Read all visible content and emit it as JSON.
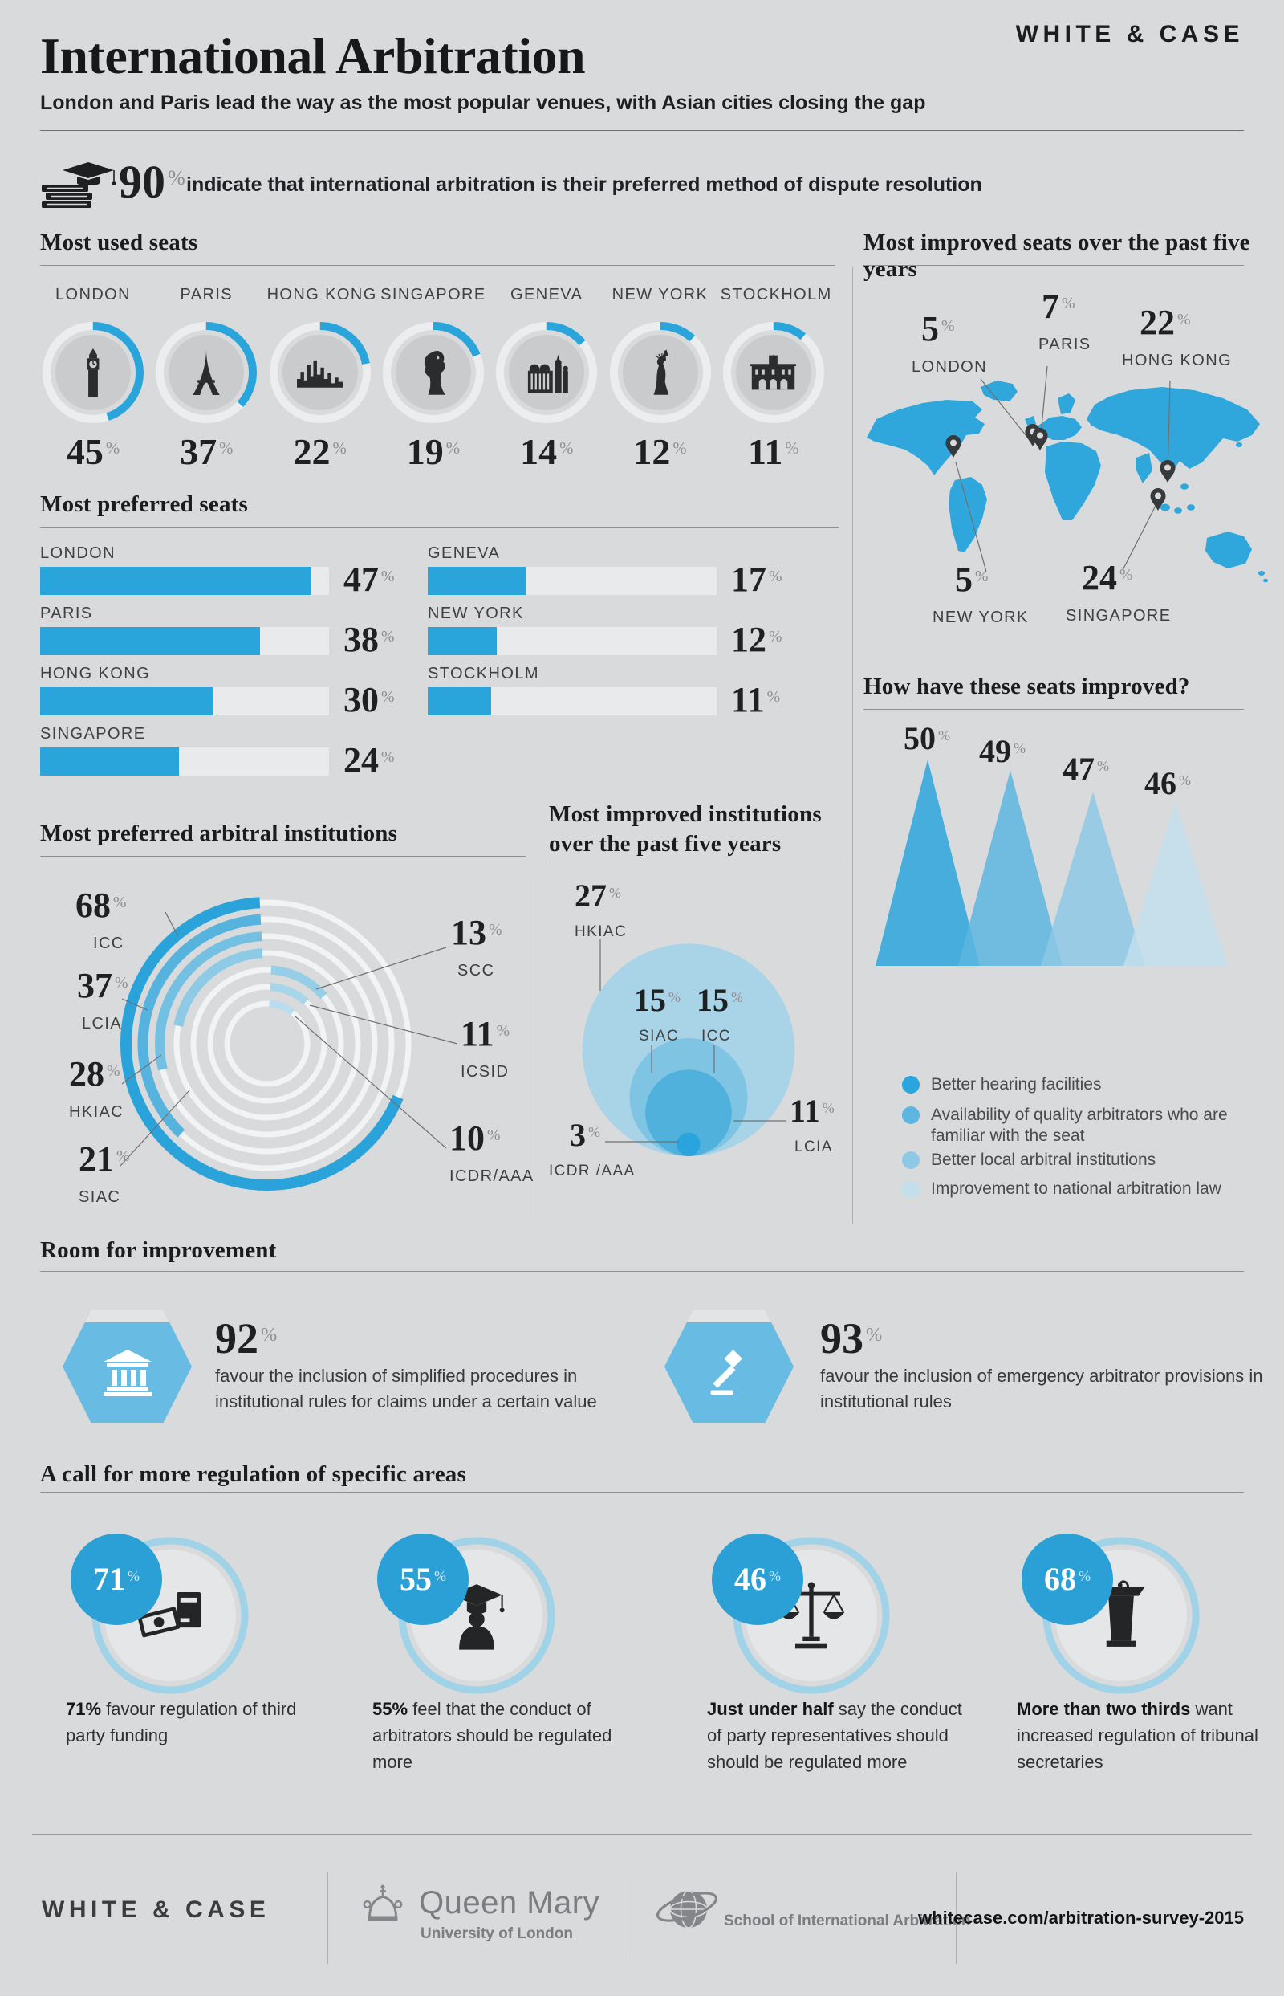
{
  "page": {
    "background": "#d9dadb",
    "accent": "#2aa5dc"
  },
  "header": {
    "title": "International Arbitration",
    "subtitle": "London and Paris lead the way as the most popular venues, with Asian cities closing the gap",
    "logo": "WHITE & CASE"
  },
  "stat90": {
    "value": "90",
    "pct": "%",
    "text": "indicate that international arbitration is their preferred method of dispute resolution",
    "icon": "books-grad-cap-icon"
  },
  "most_used_seats": {
    "title": "Most used seats",
    "items": [
      {
        "city": "LONDON",
        "value": 45,
        "icon": "big-ben-icon"
      },
      {
        "city": "PARIS",
        "value": 37,
        "icon": "eiffel-tower-icon"
      },
      {
        "city": "HONG KONG",
        "value": 22,
        "icon": "skyline-icon"
      },
      {
        "city": "SINGAPORE",
        "value": 19,
        "icon": "merlion-icon"
      },
      {
        "city": "GENEVA",
        "value": 14,
        "icon": "geneva-building-icon"
      },
      {
        "city": "NEW YORK",
        "value": 12,
        "icon": "statue-of-liberty-icon"
      },
      {
        "city": "STOCKHOLM",
        "value": 11,
        "icon": "palace-icon"
      }
    ]
  },
  "most_improved_seats": {
    "title": "Most improved seats over the past five years",
    "items": [
      {
        "city": "LONDON",
        "value": 5
      },
      {
        "city": "PARIS",
        "value": 7
      },
      {
        "city": "HONG KONG",
        "value": 22
      },
      {
        "city": "NEW YORK",
        "value": 5
      },
      {
        "city": "SINGAPORE",
        "value": 24
      }
    ]
  },
  "most_preferred_seats": {
    "title": "Most preferred seats",
    "items": [
      {
        "city": "LONDON",
        "value": 47
      },
      {
        "city": "PARIS",
        "value": 38
      },
      {
        "city": "HONG KONG",
        "value": 30
      },
      {
        "city": "SINGAPORE",
        "value": 24
      },
      {
        "city": "GENEVA",
        "value": 17
      },
      {
        "city": "NEW YORK",
        "value": 12
      },
      {
        "city": "STOCKHOLM",
        "value": 11
      }
    ]
  },
  "preferred_institutions": {
    "title": "Most preferred arbitral institutions",
    "items": [
      {
        "name": "ICC",
        "value": 68
      },
      {
        "name": "LCIA",
        "value": 37
      },
      {
        "name": "HKIAC",
        "value": 28
      },
      {
        "name": "SIAC",
        "value": 21
      },
      {
        "name": "SCC",
        "value": 13
      },
      {
        "name": "ICSID",
        "value": 11
      },
      {
        "name": "ICDR/AAA",
        "value": 10
      }
    ]
  },
  "improved_institutions": {
    "title_line1": "Most improved institutions",
    "title_line2": "over the past five years",
    "items": [
      {
        "name": "HKIAC",
        "value": 27
      },
      {
        "name": "SIAC",
        "value": 15
      },
      {
        "name": "ICC",
        "value": 15
      },
      {
        "name": "LCIA",
        "value": 11
      },
      {
        "name": "ICDR /AAA",
        "value": 3
      }
    ]
  },
  "seats_improvement": {
    "title": "How have these seats improved?",
    "values": [
      50,
      49,
      47,
      46
    ],
    "legend": [
      "Better hearing facilities",
      "Availability of quality arbitrators who are familiar with the seat",
      "Better local arbitral institutions",
      "Improvement to national arbitration law"
    ]
  },
  "room_for_improvement": {
    "title": "Room for improvement",
    "cards": [
      {
        "value": "92",
        "pct": "%",
        "icon": "bank-icon",
        "text": "favour the inclusion of simplified procedures in institutional rules for claims under a certain value"
      },
      {
        "value": "93",
        "pct": "%",
        "icon": "gavel-icon",
        "text": "favour the inclusion of emergency arbitrator provisions in institutional rules"
      }
    ]
  },
  "regulation": {
    "title": "A call for more regulation of specific areas",
    "cards": [
      {
        "bubble": "71",
        "pct": "%",
        "icon": "third-party-funding-icon",
        "lead": "71%",
        "rest": " favour regulation of third party funding"
      },
      {
        "bubble": "55",
        "pct": "%",
        "icon": "graduate-icon",
        "lead": "55%",
        "rest": " feel that the conduct of arbitrators should be regulated more"
      },
      {
        "bubble": "46",
        "pct": "%",
        "icon": "scales-icon",
        "lead": "Just under half",
        "rest": " say the conduct of party representatives should should be regulated more"
      },
      {
        "bubble": "68",
        "pct": "%",
        "icon": "lectern-icon",
        "lead": "More than two thirds",
        "rest": " want increased regulation of tribunal secretaries"
      }
    ]
  },
  "footer": {
    "whitecase": "WHITE & CASE",
    "qm_name": "Queen Mary",
    "qm_sub": "University of London",
    "sia": "School of International Arbitration",
    "url": "whitecase.com/arbitration-survey-2015"
  },
  "chart_data": [
    {
      "type": "pie",
      "variant": "donut-set",
      "title": "Most used seats",
      "categories": [
        "LONDON",
        "PARIS",
        "HONG KONG",
        "SINGAPORE",
        "GENEVA",
        "NEW YORK",
        "STOCKHOLM"
      ],
      "values": [
        45,
        37,
        22,
        19,
        14,
        12,
        11
      ],
      "unit": "%"
    },
    {
      "type": "bar",
      "title": "Most preferred seats",
      "categories": [
        "LONDON",
        "PARIS",
        "HONG KONG",
        "SINGAPORE",
        "GENEVA",
        "NEW YORK",
        "STOCKHOLM"
      ],
      "values": [
        47,
        38,
        30,
        24,
        17,
        12,
        11
      ],
      "unit": "%",
      "xlim": [
        0,
        50
      ],
      "orientation": "horizontal"
    },
    {
      "type": "scatter",
      "variant": "map-markers",
      "title": "Most improved seats over the past five years",
      "categories": [
        "LONDON",
        "PARIS",
        "HONG KONG",
        "NEW YORK",
        "SINGAPORE"
      ],
      "values": [
        5,
        7,
        22,
        5,
        24
      ],
      "unit": "%"
    },
    {
      "type": "pie",
      "variant": "radial-arcs",
      "title": "Most preferred arbitral institutions",
      "categories": [
        "ICC",
        "LCIA",
        "HKIAC",
        "SIAC",
        "SCC",
        "ICSID",
        "ICDR/AAA"
      ],
      "values": [
        68,
        37,
        28,
        21,
        13,
        11,
        10
      ],
      "unit": "%"
    },
    {
      "type": "pie",
      "variant": "nested-bubbles",
      "title": "Most improved institutions over the past five years",
      "categories": [
        "HKIAC",
        "SIAC",
        "ICC",
        "LCIA",
        "ICDR /AAA"
      ],
      "values": [
        27,
        15,
        15,
        11,
        3
      ],
      "unit": "%"
    },
    {
      "type": "area",
      "variant": "triangle-peaks",
      "title": "How have these seats improved?",
      "categories": [
        "Better hearing facilities",
        "Availability of quality arbitrators who are familiar with the seat",
        "Better local arbitral institutions",
        "Improvement to national arbitration law"
      ],
      "values": [
        50,
        49,
        47,
        46
      ],
      "unit": "%"
    },
    {
      "type": "pie",
      "variant": "stat-badges",
      "title": "A call for more regulation of specific areas",
      "categories": [
        "third party funding",
        "conduct of arbitrators",
        "conduct of party representatives",
        "tribunal secretaries"
      ],
      "values": [
        71,
        55,
        46,
        68
      ],
      "unit": "%"
    },
    {
      "type": "pie",
      "variant": "stat-hexagons",
      "title": "Room for improvement",
      "categories": [
        "simplified procedures in institutional rules",
        "emergency arbitrator provisions"
      ],
      "values": [
        92,
        93
      ],
      "unit": "%"
    },
    {
      "type": "pie",
      "variant": "single-stat",
      "title": "Preferred method of dispute resolution",
      "categories": [
        "international arbitration preferred"
      ],
      "values": [
        90
      ],
      "unit": "%"
    }
  ]
}
